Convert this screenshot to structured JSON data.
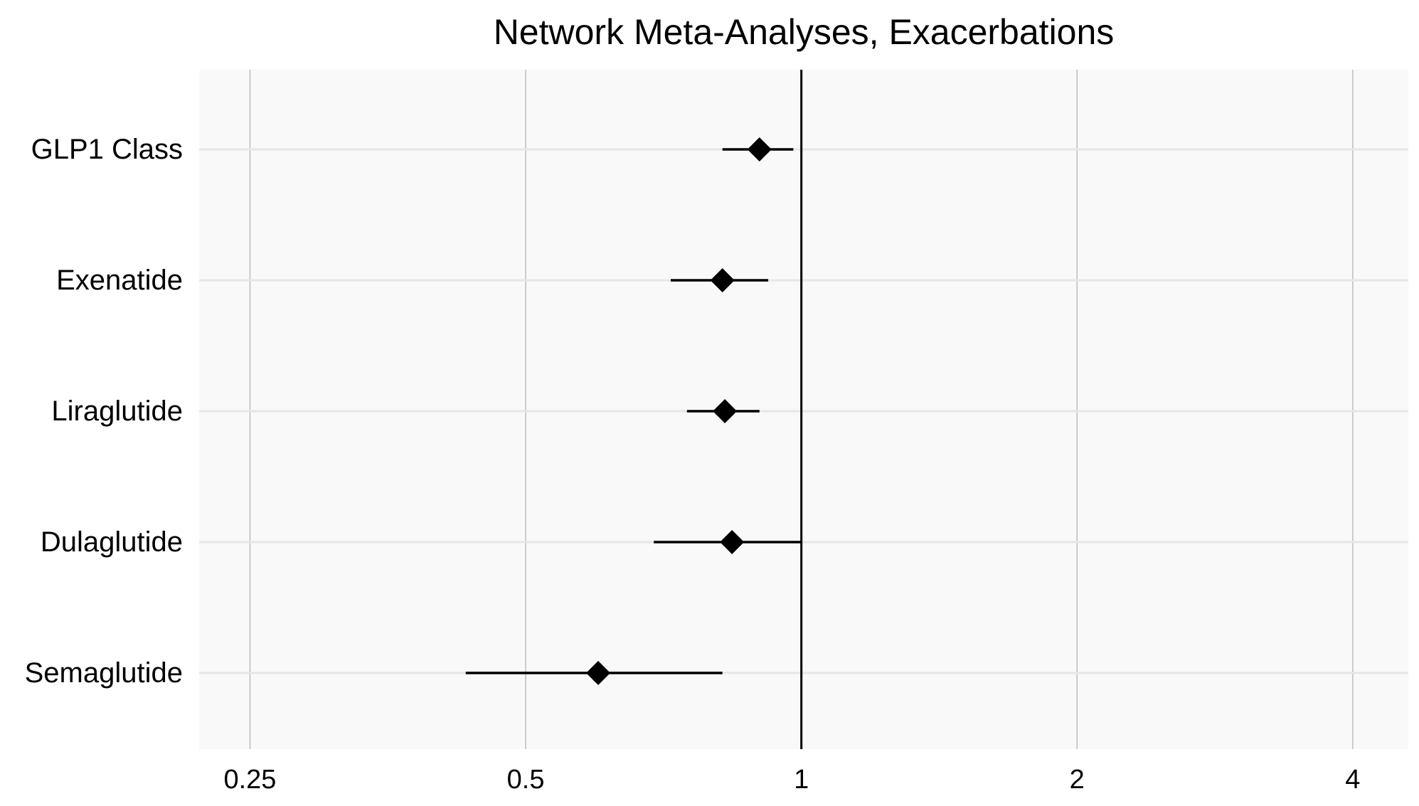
{
  "chart_data": {
    "type": "forest",
    "title": "Network Meta-Analyses, Exacerbations",
    "xscale": "log2",
    "xlim": [
      0.22,
      4.6
    ],
    "xticks": [
      0.25,
      0.5,
      1,
      2,
      4
    ],
    "xtick_labels": [
      "0.25",
      "0.5",
      "1",
      "2",
      "4"
    ],
    "reference_line": 1,
    "grid": true,
    "categories": [
      "GLP1 Class",
      "Exenatide",
      "Liraglutide",
      "Dulaglutide",
      "Semaglutide"
    ],
    "estimates": [
      0.9,
      0.82,
      0.825,
      0.84,
      0.6
    ],
    "lower": [
      0.82,
      0.72,
      0.75,
      0.69,
      0.43
    ],
    "upper": [
      0.98,
      0.92,
      0.9,
      1.0,
      0.82
    ],
    "colors": {
      "panel": "#f9f9f9",
      "vgrid": "#bdbdbd",
      "hgrid": "#e6e6e6",
      "marker": "#000000",
      "reference": "#000000"
    }
  }
}
